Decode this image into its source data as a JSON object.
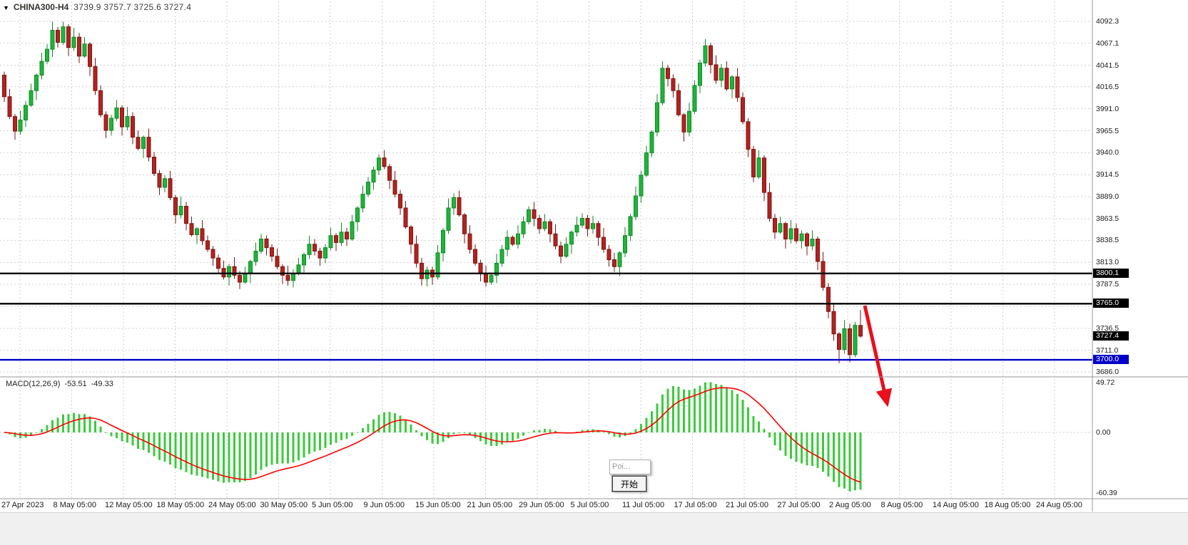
{
  "header": {
    "menu_icon": "▼",
    "symbol": "CHINA300-H4",
    "ohlc": "3739.9 3757.7 3725.6 3727.4"
  },
  "popup": {
    "title": "Poi...",
    "button": "开始"
  },
  "macd_panel": {
    "name": "MACD(12,26,9)",
    "main_value": "-53.51",
    "signal_value": "-49.33"
  },
  "chart_data": {
    "type": "candlestick",
    "symbol": "CHINA300",
    "timeframe": "H4",
    "ohlc": {
      "open": 3739.9,
      "high": 3757.7,
      "low": 3725.6,
      "close": 3727.4
    },
    "x_labels": [
      "27 Apr 2023",
      "8 May 05:00",
      "12 May 05:00",
      "18 May 05:00",
      "24 May 05:00",
      "30 May 05:00",
      "5 Jun 05:00",
      "9 Jun 05:00",
      "15 Jun 05:00",
      "21 Jun 05:00",
      "29 Jun 05:00",
      "5 Jul 05:00",
      "11 Jul 05:00",
      "17 Jul 05:00",
      "21 Jul 05:00",
      "27 Jul 05:00",
      "2 Aug 05:00",
      "8 Aug 05:00",
      "14 Aug 05:00",
      "18 Aug 05:00",
      "24 Aug 05:00"
    ],
    "price_axis": {
      "min": 3686.0,
      "max": 4092.3,
      "tick_labels": [
        "4092.3",
        "4067.1",
        "4041.5",
        "4016.5",
        "3991.0",
        "3965.5",
        "3940.0",
        "3914.5",
        "3889.0",
        "3863.5",
        "3838.5",
        "3813.0",
        "3787.5",
        "3736.5",
        "3711.0",
        "3686.0"
      ],
      "grid_ticks": [
        4092.3,
        4067.1,
        4041.5,
        4016.5,
        3991.0,
        3965.5,
        3940.0,
        3914.5,
        3889.0,
        3863.5,
        3838.5,
        3813.0,
        3787.5,
        3762.0,
        3736.5,
        3711.0,
        3686.0
      ],
      "tags": [
        {
          "label": "3800.1",
          "price": 3800.1,
          "bg": "#000000"
        },
        {
          "label": "3765.0",
          "price": 3765.0,
          "bg": "#000000"
        },
        {
          "label": "3727.4",
          "price": 3727.4,
          "bg": "#000000"
        },
        {
          "label": "3700.0",
          "price": 3700.0,
          "bg": "#0000C8"
        }
      ]
    },
    "hlines": [
      {
        "price": 3800.1,
        "color": "#000000",
        "width": 2.4
      },
      {
        "price": 3765.0,
        "color": "#000000",
        "width": 2.4
      },
      {
        "price": 3700.0,
        "color": "#0000C8",
        "width": 2.4
      }
    ],
    "macd": {
      "name": "MACD(12,26,9)",
      "params": [
        12,
        26,
        9
      ],
      "main": -53.51,
      "signal": -49.33,
      "axis_ticks": [
        "49.72",
        "0.00",
        "-60.39"
      ],
      "axis": {
        "min": -60.39,
        "max": 49.72
      },
      "histogram_color": "#3CCB3C",
      "signal_color": "#FF0000"
    },
    "arrow": {
      "color": "#E8101C",
      "direction": "down-right"
    },
    "colors": {
      "up": "#1EB53A",
      "up_border": "#128726",
      "down": "#B22222",
      "down_border": "#7E150F",
      "grid": "#CFCFCF",
      "separator": "#9a9a9a"
    },
    "candles": [
      [
        4030,
        4034,
        3999,
        4005
      ],
      [
        4005,
        4014,
        3979,
        3982
      ],
      [
        3982,
        3985,
        3955,
        3965
      ],
      [
        3965,
        3989,
        3961,
        3978
      ],
      [
        3978,
        4000,
        3970,
        3995
      ],
      [
        3995,
        4020,
        3993,
        4012
      ],
      [
        4012,
        4032,
        4001,
        4030
      ],
      [
        4030,
        4056,
        4025,
        4046
      ],
      [
        4046,
        4066,
        4043,
        4060
      ],
      [
        4060,
        4092,
        4051,
        4082
      ],
      [
        4082,
        4086,
        4062,
        4068
      ],
      [
        4068,
        4092,
        4065,
        4086
      ],
      [
        4086,
        4089,
        4052,
        4062
      ],
      [
        4062,
        4085,
        4058,
        4074
      ],
      [
        4074,
        4079,
        4044,
        4052
      ],
      [
        4052,
        4074,
        4050,
        4066
      ],
      [
        4066,
        4068,
        4029,
        4040
      ],
      [
        4040,
        4050,
        4007,
        4012
      ],
      [
        4012,
        4018,
        3981,
        3984
      ],
      [
        3984,
        3988,
        3957,
        3966
      ],
      [
        3966,
        3984,
        3960,
        3980
      ],
      [
        3980,
        4001,
        3977,
        3992
      ],
      [
        3992,
        3995,
        3960,
        3970
      ],
      [
        3970,
        3993,
        3966,
        3982
      ],
      [
        3982,
        3987,
        3950,
        3958
      ],
      [
        3958,
        3966,
        3943,
        3945
      ],
      [
        3945,
        3960,
        3934,
        3958
      ],
      [
        3958,
        3968,
        3930,
        3935
      ],
      [
        3935,
        3941,
        3913,
        3916
      ],
      [
        3916,
        3920,
        3891,
        3900
      ],
      [
        3900,
        3914,
        3894,
        3910
      ],
      [
        3910,
        3919,
        3885,
        3888
      ],
      [
        3888,
        3891,
        3858,
        3868
      ],
      [
        3868,
        3889,
        3864,
        3878
      ],
      [
        3878,
        3883,
        3850,
        3858
      ],
      [
        3858,
        3866,
        3843,
        3845
      ],
      [
        3845,
        3854,
        3834,
        3852
      ],
      [
        3852,
        3862,
        3833,
        3838
      ],
      [
        3838,
        3844,
        3825,
        3828
      ],
      [
        3828,
        3832,
        3809,
        3818
      ],
      [
        3818,
        3822,
        3800,
        3806
      ],
      [
        3806,
        3815,
        3793,
        3796
      ],
      [
        3796,
        3811,
        3786,
        3808
      ],
      [
        3808,
        3819,
        3794,
        3798
      ],
      [
        3798,
        3803,
        3782,
        3790
      ],
      [
        3790,
        3808,
        3788,
        3800
      ],
      [
        3800,
        3816,
        3789,
        3814
      ],
      [
        3814,
        3836,
        3809,
        3826
      ],
      [
        3826,
        3846,
        3823,
        3840
      ],
      [
        3840,
        3844,
        3821,
        3830
      ],
      [
        3830,
        3834,
        3814,
        3820
      ],
      [
        3820,
        3829,
        3805,
        3808
      ],
      [
        3808,
        3811,
        3788,
        3798
      ],
      [
        3798,
        3809,
        3786,
        3792
      ],
      [
        3792,
        3805,
        3784,
        3800
      ],
      [
        3800,
        3818,
        3798,
        3810
      ],
      [
        3810,
        3824,
        3799,
        3822
      ],
      [
        3822,
        3844,
        3817,
        3834
      ],
      [
        3834,
        3840,
        3821,
        3826
      ],
      [
        3826,
        3830,
        3809,
        3818
      ],
      [
        3818,
        3834,
        3812,
        3830
      ],
      [
        3830,
        3853,
        3827,
        3844
      ],
      [
        3844,
        3847,
        3826,
        3836
      ],
      [
        3836,
        3859,
        3832,
        3848
      ],
      [
        3848,
        3853,
        3832,
        3840
      ],
      [
        3840,
        3868,
        3838,
        3860
      ],
      [
        3860,
        3878,
        3849,
        3876
      ],
      [
        3876,
        3902,
        3871,
        3892
      ],
      [
        3892,
        3912,
        3889,
        3906
      ],
      [
        3906,
        3924,
        3897,
        3920
      ],
      [
        3920,
        3938,
        3914,
        3934
      ],
      [
        3934,
        3943,
        3921,
        3924
      ],
      [
        3924,
        3927,
        3898,
        3908
      ],
      [
        3908,
        3919,
        3888,
        3892
      ],
      [
        3892,
        3897,
        3868,
        3876
      ],
      [
        3876,
        3884,
        3852,
        3854
      ],
      [
        3854,
        3856,
        3823,
        3834
      ],
      [
        3834,
        3844,
        3807,
        3812
      ],
      [
        3812,
        3818,
        3786,
        3794
      ],
      [
        3794,
        3808,
        3785,
        3804
      ],
      [
        3804,
        3808,
        3787,
        3796
      ],
      [
        3796,
        3833,
        3793,
        3824
      ],
      [
        3824,
        3853,
        3814,
        3850
      ],
      [
        3850,
        3887,
        3846,
        3876
      ],
      [
        3876,
        3893,
        3868,
        3888
      ],
      [
        3888,
        3896,
        3866,
        3868
      ],
      [
        3868,
        3870,
        3835,
        3846
      ],
      [
        3846,
        3856,
        3823,
        3828
      ],
      [
        3828,
        3834,
        3809,
        3812
      ],
      [
        3812,
        3816,
        3791,
        3800
      ],
      [
        3800,
        3809,
        3785,
        3790
      ],
      [
        3790,
        3801,
        3787,
        3798
      ],
      [
        3798,
        3823,
        3789,
        3812
      ],
      [
        3812,
        3833,
        3808,
        3828
      ],
      [
        3828,
        3850,
        3820,
        3842
      ],
      [
        3842,
        3844,
        3832,
        3834
      ],
      [
        3834,
        3856,
        3829,
        3846
      ],
      [
        3846,
        3866,
        3841,
        3860
      ],
      [
        3860,
        3878,
        3857,
        3874
      ],
      [
        3874,
        3883,
        3855,
        3864
      ],
      [
        3864,
        3868,
        3846,
        3852
      ],
      [
        3852,
        3869,
        3849,
        3860
      ],
      [
        3860,
        3863,
        3836,
        3846
      ],
      [
        3846,
        3857,
        3828,
        3832
      ],
      [
        3832,
        3837,
        3812,
        3820
      ],
      [
        3820,
        3842,
        3818,
        3834
      ],
      [
        3834,
        3850,
        3823,
        3848
      ],
      [
        3848,
        3866,
        3843,
        3856
      ],
      [
        3856,
        3870,
        3853,
        3864
      ],
      [
        3864,
        3868,
        3843,
        3852
      ],
      [
        3852,
        3867,
        3846,
        3858
      ],
      [
        3858,
        3861,
        3832,
        3842
      ],
      [
        3842,
        3853,
        3824,
        3828
      ],
      [
        3828,
        3833,
        3808,
        3816
      ],
      [
        3816,
        3824,
        3802,
        3808
      ],
      [
        3808,
        3826,
        3797,
        3824
      ],
      [
        3824,
        3854,
        3819,
        3844
      ],
      [
        3844,
        3869,
        3838,
        3866
      ],
      [
        3866,
        3901,
        3862,
        3890
      ],
      [
        3890,
        3919,
        3882,
        3914
      ],
      [
        3914,
        3948,
        3912,
        3940
      ],
      [
        3940,
        3966,
        3935,
        3964
      ],
      [
        3964,
        4008,
        3959,
        3998
      ],
      [
        3998,
        4046,
        3995,
        4038
      ],
      [
        4038,
        4042,
        4017,
        4026
      ],
      [
        4026,
        4031,
        4004,
        4012
      ],
      [
        4012,
        4020,
        3982,
        3984
      ],
      [
        3984,
        3986,
        3953,
        3964
      ],
      [
        3964,
        3998,
        3959,
        3988
      ],
      [
        3988,
        4024,
        3985,
        4018
      ],
      [
        4018,
        4048,
        4009,
        4044
      ],
      [
        4044,
        4072,
        4040,
        4064
      ],
      [
        4064,
        4067,
        4032,
        4042
      ],
      [
        4042,
        4053,
        4020,
        4024
      ],
      [
        4024,
        4043,
        4016,
        4038
      ],
      [
        4038,
        4046,
        4012,
        4014
      ],
      [
        4014,
        4030,
        4003,
        4028
      ],
      [
        4028,
        4038,
        3999,
        4004
      ],
      [
        4004,
        4010,
        3973,
        3976
      ],
      [
        3976,
        3980,
        3935,
        3944
      ],
      [
        3944,
        3948,
        3906,
        3912
      ],
      [
        3912,
        3943,
        3910,
        3934
      ],
      [
        3934,
        3937,
        3884,
        3894
      ],
      [
        3894,
        3905,
        3860,
        3864
      ],
      [
        3864,
        3869,
        3840,
        3848
      ],
      [
        3848,
        3866,
        3846,
        3858
      ],
      [
        3858,
        3860,
        3829,
        3840
      ],
      [
        3840,
        3862,
        3835,
        3852
      ],
      [
        3852,
        3858,
        3835,
        3838
      ],
      [
        3838,
        3850,
        3829,
        3846
      ],
      [
        3846,
        3848,
        3821,
        3832
      ],
      [
        3832,
        3850,
        3827,
        3840
      ],
      [
        3840,
        3843,
        3804,
        3814
      ],
      [
        3814,
        3825,
        3780,
        3784
      ],
      [
        3784,
        3789,
        3748,
        3756
      ],
      [
        3756,
        3764,
        3722,
        3730
      ],
      [
        3730,
        3732,
        3696,
        3712
      ],
      [
        3712,
        3746,
        3707,
        3736
      ],
      [
        3736,
        3742,
        3697,
        3706
      ],
      [
        3706,
        3744,
        3703,
        3740
      ],
      [
        3739.9,
        3757.7,
        3725.6,
        3727.4
      ]
    ]
  }
}
